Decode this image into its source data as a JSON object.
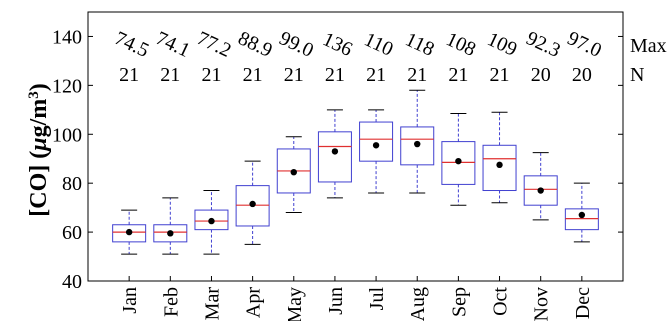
{
  "chart_data": {
    "type": "box",
    "categories": [
      "Jan",
      "Feb",
      "Mar",
      "Apr",
      "May",
      "Jun",
      "Jul",
      "Aug",
      "Sep",
      "Oct",
      "Nov",
      "Dec"
    ],
    "ylabel_prefix": "[CO] (",
    "ylabel_mu": "μ",
    "ylabel_unit": "g/m",
    "ylabel_exp": "3",
    "ylabel_suffix": ")",
    "ylim": [
      40,
      150
    ],
    "yticks": [
      "40",
      "60",
      "80",
      "100",
      "120",
      "140"
    ],
    "max_label": "Max",
    "n_label": "N",
    "max_values": [
      "74.5",
      "74.1",
      "77.2",
      "88.9",
      "99.0",
      "136",
      "110",
      "118",
      "108",
      "109",
      "92.3",
      "97.0"
    ],
    "n_values": [
      "21",
      "21",
      "21",
      "21",
      "21",
      "21",
      "21",
      "21",
      "21",
      "21",
      "20",
      "20"
    ],
    "boxes": [
      {
        "whisker_low": 51,
        "q1": 56,
        "median": 60,
        "q3": 63,
        "whisker_high": 69,
        "mean": 60
      },
      {
        "whisker_low": 51,
        "q1": 56,
        "median": 60,
        "q3": 63,
        "whisker_high": 74,
        "mean": 59.5
      },
      {
        "whisker_low": 51,
        "q1": 61,
        "median": 64.5,
        "q3": 69,
        "whisker_high": 77,
        "mean": 64.5
      },
      {
        "whisker_low": 55,
        "q1": 62.5,
        "median": 71,
        "q3": 79,
        "whisker_high": 89,
        "mean": 71.5
      },
      {
        "whisker_low": 68,
        "q1": 76,
        "median": 85,
        "q3": 94,
        "whisker_high": 99,
        "mean": 84.5
      },
      {
        "whisker_low": 74,
        "q1": 80.5,
        "median": 95,
        "q3": 101,
        "whisker_high": 110,
        "mean": 93
      },
      {
        "whisker_low": 76,
        "q1": 89,
        "median": 98,
        "q3": 105,
        "whisker_high": 110,
        "mean": 95.5
      },
      {
        "whisker_low": 76,
        "q1": 87.5,
        "median": 98,
        "q3": 103,
        "whisker_high": 118,
        "mean": 96
      },
      {
        "whisker_low": 71,
        "q1": 79.5,
        "median": 88.5,
        "q3": 97,
        "whisker_high": 108.5,
        "mean": 89
      },
      {
        "whisker_low": 72,
        "q1": 77,
        "median": 90,
        "q3": 95.5,
        "whisker_high": 109,
        "mean": 87.5
      },
      {
        "whisker_low": 65,
        "q1": 71,
        "median": 77.5,
        "q3": 83,
        "whisker_high": 92.5,
        "mean": 77
      },
      {
        "whisker_low": 56,
        "q1": 61,
        "median": 65.5,
        "q3": 69.5,
        "whisker_high": 80,
        "mean": 67
      }
    ],
    "colors": {
      "box": "#4040d0",
      "median": "#e03030",
      "mean": "#000000",
      "axis": "#000000"
    }
  }
}
